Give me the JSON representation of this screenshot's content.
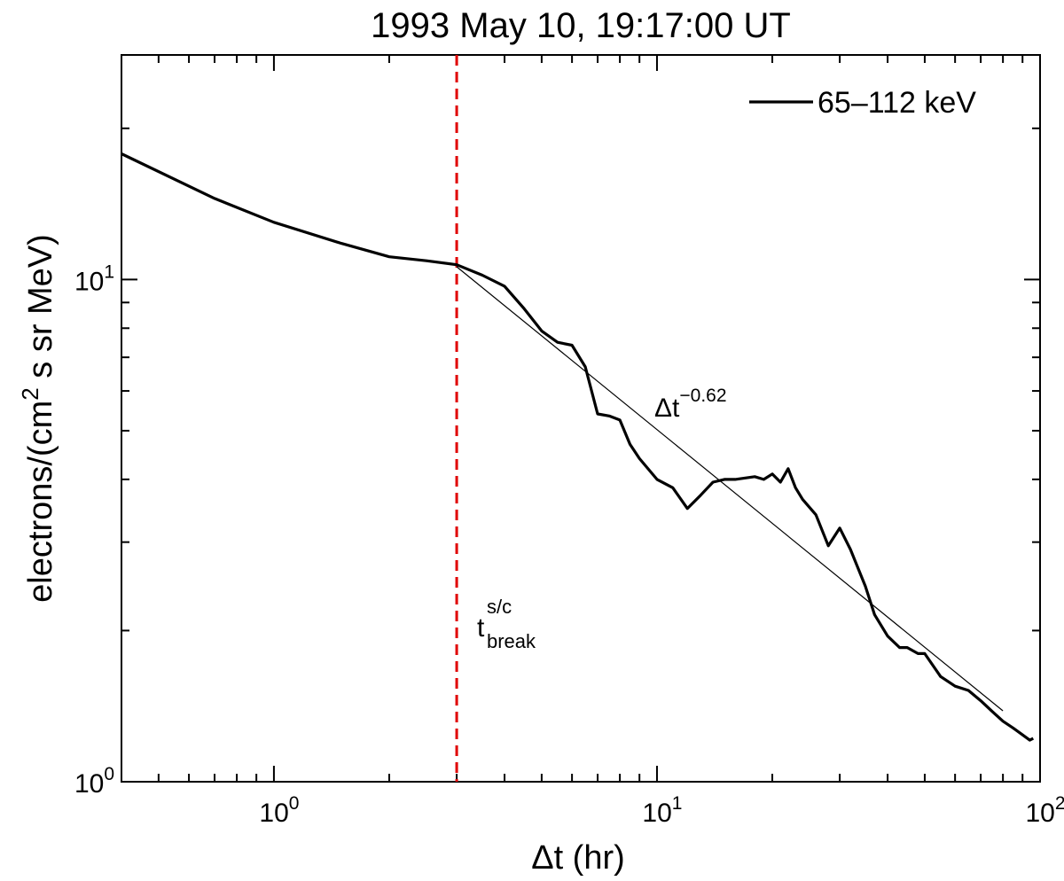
{
  "chart_data": {
    "type": "line",
    "title": "1993 May 10, 19:17:00 UT",
    "xlabel": "Δt (hr)",
    "ylabel": "electrons/(cm² s sr MeV)",
    "ylabel_parts": {
      "before": "electrons/(cm",
      "sup": "2",
      "after": " s sr MeV)"
    },
    "x_scale": "log",
    "y_scale": "log",
    "xlim": [
      0.4,
      100
    ],
    "ylim": [
      1,
      28
    ],
    "x_ticks": [
      {
        "value": 1,
        "base": "10",
        "exp": "0"
      },
      {
        "value": 10,
        "base": "10",
        "exp": "1"
      },
      {
        "value": 100,
        "base": "10",
        "exp": "2"
      }
    ],
    "y_ticks": [
      {
        "value": 1,
        "base": "10",
        "exp": "0"
      },
      {
        "value": 10,
        "base": "10",
        "exp": "1"
      }
    ],
    "grid": false,
    "legend": {
      "placement": "top-right",
      "entries": [
        {
          "label": "65–112 keV",
          "color": "#000000"
        }
      ]
    },
    "series": [
      {
        "name": "65–112 keV",
        "color": "#000000",
        "x": [
          0.4,
          0.7,
          1.0,
          1.5,
          2.0,
          2.5,
          3.0,
          3.5,
          4.0,
          4.5,
          5.0,
          5.5,
          6.0,
          6.5,
          7.0,
          7.5,
          8.0,
          8.5,
          9.0,
          10.0,
          11.0,
          12.0,
          13.0,
          14.0,
          15.0,
          16.0,
          18.0,
          19.0,
          20.0,
          21.0,
          22.0,
          23.0,
          24.0,
          26.0,
          28.0,
          30.0,
          32.0,
          35.0,
          37.0,
          40.0,
          43.0,
          45.0,
          48.0,
          50.0,
          55.0,
          60.0,
          65.0,
          70.0,
          75.0,
          80.0,
          85.0,
          90.0,
          94.0,
          96.0
        ],
        "values": [
          17.8,
          14.5,
          13.0,
          11.8,
          11.1,
          10.9,
          10.7,
          10.2,
          9.7,
          8.75,
          7.9,
          7.5,
          7.4,
          6.7,
          5.4,
          5.35,
          5.25,
          4.7,
          4.4,
          4.0,
          3.85,
          3.5,
          3.72,
          3.95,
          4.0,
          4.0,
          4.05,
          4.0,
          4.1,
          3.95,
          4.2,
          3.85,
          3.65,
          3.4,
          2.95,
          3.2,
          2.9,
          2.45,
          2.15,
          1.95,
          1.85,
          1.85,
          1.8,
          1.8,
          1.62,
          1.55,
          1.52,
          1.45,
          1.38,
          1.32,
          1.28,
          1.24,
          1.21,
          1.22
        ]
      }
    ],
    "fit": {
      "label_base": "Δt",
      "label_exp": "−0.62",
      "exponent": -0.62,
      "x_range": [
        3.0,
        80.0
      ],
      "y_at_start": 10.6,
      "color": "#000000"
    },
    "vline": {
      "x": 3.0,
      "color": "#e00000",
      "style": "dashed",
      "label_main": "t",
      "label_sup": "s/c",
      "label_sub": "break"
    }
  }
}
